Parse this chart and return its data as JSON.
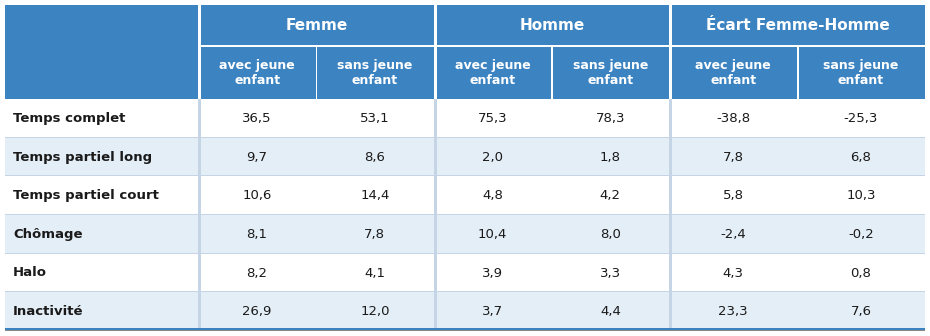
{
  "header_top": [
    "Femme",
    "Homme",
    "Écart Femme-Homme"
  ],
  "header_sub": [
    "avec jeune\nenfant",
    "sans jeune\nenfant",
    "avec jeune\nenfant",
    "sans jeune\nenfant",
    "avec jeune\nenfant",
    "sans jeune\nenfant"
  ],
  "row_labels": [
    "Temps complet",
    "Temps partiel long",
    "Temps partiel court",
    "Chômage",
    "Halo",
    "Inactivité"
  ],
  "data": [
    [
      "36,5",
      "53,1",
      "75,3",
      "78,3",
      "-38,8",
      "-25,3"
    ],
    [
      "9,7",
      "8,6",
      "2,0",
      "1,8",
      "7,8",
      "6,8"
    ],
    [
      "10,6",
      "14,4",
      "4,8",
      "4,2",
      "5,8",
      "10,3"
    ],
    [
      "8,1",
      "7,8",
      "10,4",
      "8,0",
      "-2,4",
      "-0,2"
    ],
    [
      "8,2",
      "4,1",
      "3,9",
      "3,3",
      "4,3",
      "0,8"
    ],
    [
      "26,9",
      "12,0",
      "3,7",
      "4,4",
      "23,3",
      "7,6"
    ]
  ],
  "header_bg": "#3C83C1",
  "header_fg": "#FFFFFF",
  "alt_row": "#E4EEF7",
  "white_row": "#FFFFFF",
  "divider_heavy": "#FFFFFF",
  "divider_light": "#C5D5E5",
  "text_dark": "#1A1A1A",
  "figw": 9.3,
  "figh": 3.36,
  "dpi": 100
}
